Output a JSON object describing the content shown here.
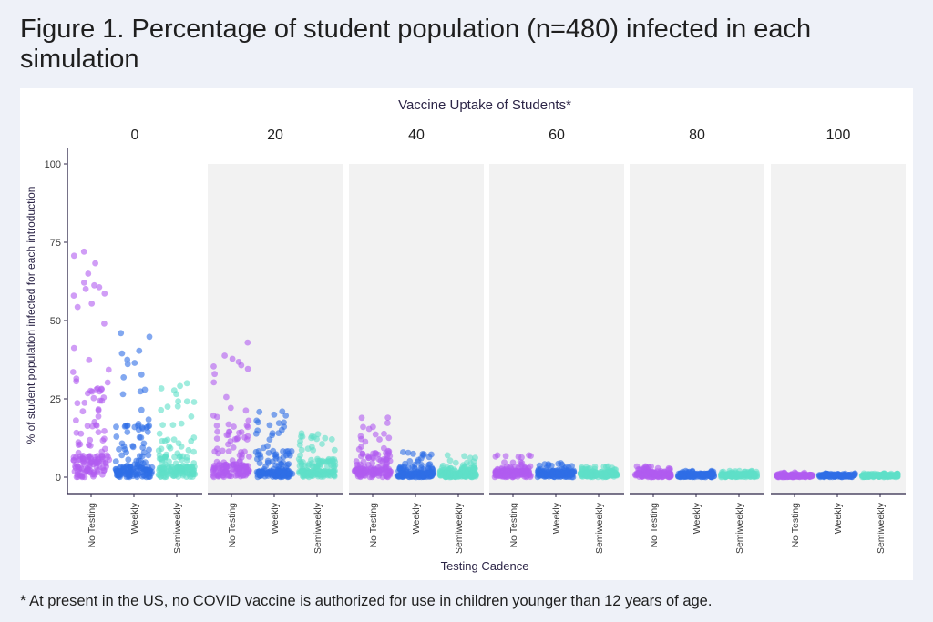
{
  "title": "Figure 1. Percentage of student population (n=480) infected in each simulation",
  "footnote": "* At present in the US, no COVID vaccine is authorized for use in children younger than 12 years of age.",
  "chart_data": {
    "type": "scatter",
    "facet_title": "Vaccine Uptake of Students*",
    "xlabel": "Testing Cadence",
    "ylabel": "% of student population infected for each introduction",
    "ylim": [
      0,
      100
    ],
    "y_ticks": [
      "0",
      "25",
      "50",
      "75",
      "100"
    ],
    "categories": [
      "No Testing",
      "Weekly",
      "Semiweekly"
    ],
    "category_colors": [
      "#b05cf0",
      "#2f6ee6",
      "#5fe0c8"
    ],
    "grid": false,
    "panels": [
      {
        "label": "0",
        "max": [
          72,
          46,
          30
        ],
        "median": [
          5,
          2.5,
          2.5
        ]
      },
      {
        "label": "20",
        "max": [
          43,
          21,
          14
        ],
        "median": [
          3,
          1.5,
          1.5
        ]
      },
      {
        "label": "40",
        "max": [
          19,
          8,
          7
        ],
        "median": [
          2,
          1,
          1
        ]
      },
      {
        "label": "60",
        "max": [
          7,
          4.5,
          3.5
        ],
        "median": [
          1.5,
          1,
          1
        ]
      },
      {
        "label": "80",
        "max": [
          3.5,
          2,
          2
        ],
        "median": [
          1,
          0.8,
          0.8
        ]
      },
      {
        "label": "100",
        "max": [
          1.5,
          1.2,
          1.2
        ],
        "median": [
          0.5,
          0.5,
          0.5
        ]
      }
    ]
  }
}
